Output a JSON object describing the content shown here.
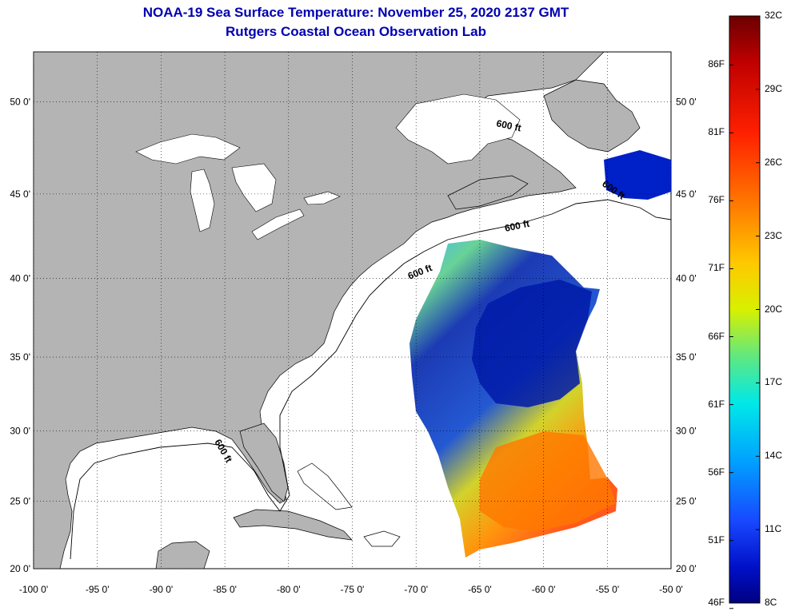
{
  "title": "NOAA-19 Sea Surface Temperature:  November 25, 2020 2137 GMT",
  "subtitle": "Rutgers Coastal Ocean Observation Lab",
  "lon_ticks": [
    "-100 0'",
    "-95 0'",
    "-90 0'",
    "-85 0'",
    "-80 0'",
    "-75 0'",
    "-70 0'",
    "-65 0'",
    "-60 0'",
    "-55 0'",
    "-50 0'"
  ],
  "lat_ticks": [
    "50 0'",
    "45 0'",
    "40 0'",
    "35 0'",
    "30 0'",
    "25 0'",
    "20 0'"
  ],
  "contour_labels": [
    "600 ft",
    "600 ft",
    "600 ft",
    "600 ft",
    "600 ft"
  ],
  "colorbar": {
    "fahrenheit": [
      "86F",
      "81F",
      "76F",
      "71F",
      "66F",
      "61F",
      "56F",
      "51F",
      "46F"
    ],
    "celsius": [
      "32C",
      "29C",
      "26C",
      "23C",
      "20C",
      "17C",
      "14C",
      "11C",
      "8C"
    ],
    "colors": [
      "#6b0000",
      "#c80000",
      "#ff2000",
      "#ff7a00",
      "#ffc000",
      "#f0f000",
      "#a0f040",
      "#40e0a0",
      "#00e8e8",
      "#00a8ff",
      "#2060ff",
      "#0020e0",
      "#000090"
    ]
  },
  "colors": {
    "land": "#b4b4b4",
    "title": "#0000b0",
    "sst_warm": "#ff7800",
    "sst_cold": "#001aa8"
  }
}
